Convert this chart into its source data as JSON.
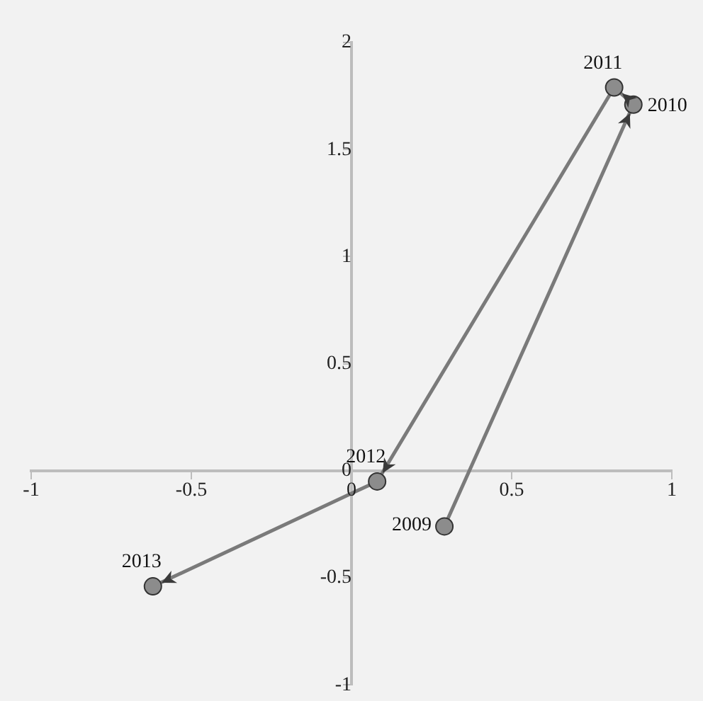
{
  "chart_data": {
    "type": "line",
    "xlim": [
      -1,
      1
    ],
    "ylim": [
      -1,
      2
    ],
    "xticks": [
      -1,
      -0.5,
      0,
      0.5,
      1
    ],
    "yticks": [
      -1,
      -0.5,
      0,
      0.5,
      1,
      1.5,
      2
    ],
    "grid": false,
    "legend": false,
    "marker": "circle",
    "line_style": "solid",
    "series": [
      {
        "color": "#7a7a7a",
        "x": [
          0.29,
          0.88,
          0.82,
          0.08,
          -0.62
        ],
        "values": [
          -0.26,
          1.71,
          1.79,
          -0.05,
          -0.54
        ]
      }
    ],
    "annotations": [
      {
        "text": "2009",
        "x": 0.29,
        "y": -0.26
      },
      {
        "text": "2010",
        "x": 0.88,
        "y": 1.71
      },
      {
        "text": "2011",
        "x": 0.82,
        "y": 1.79
      },
      {
        "text": "2012",
        "x": 0.08,
        "y": -0.05
      },
      {
        "text": "2013",
        "x": -0.62,
        "y": -0.54
      }
    ]
  }
}
